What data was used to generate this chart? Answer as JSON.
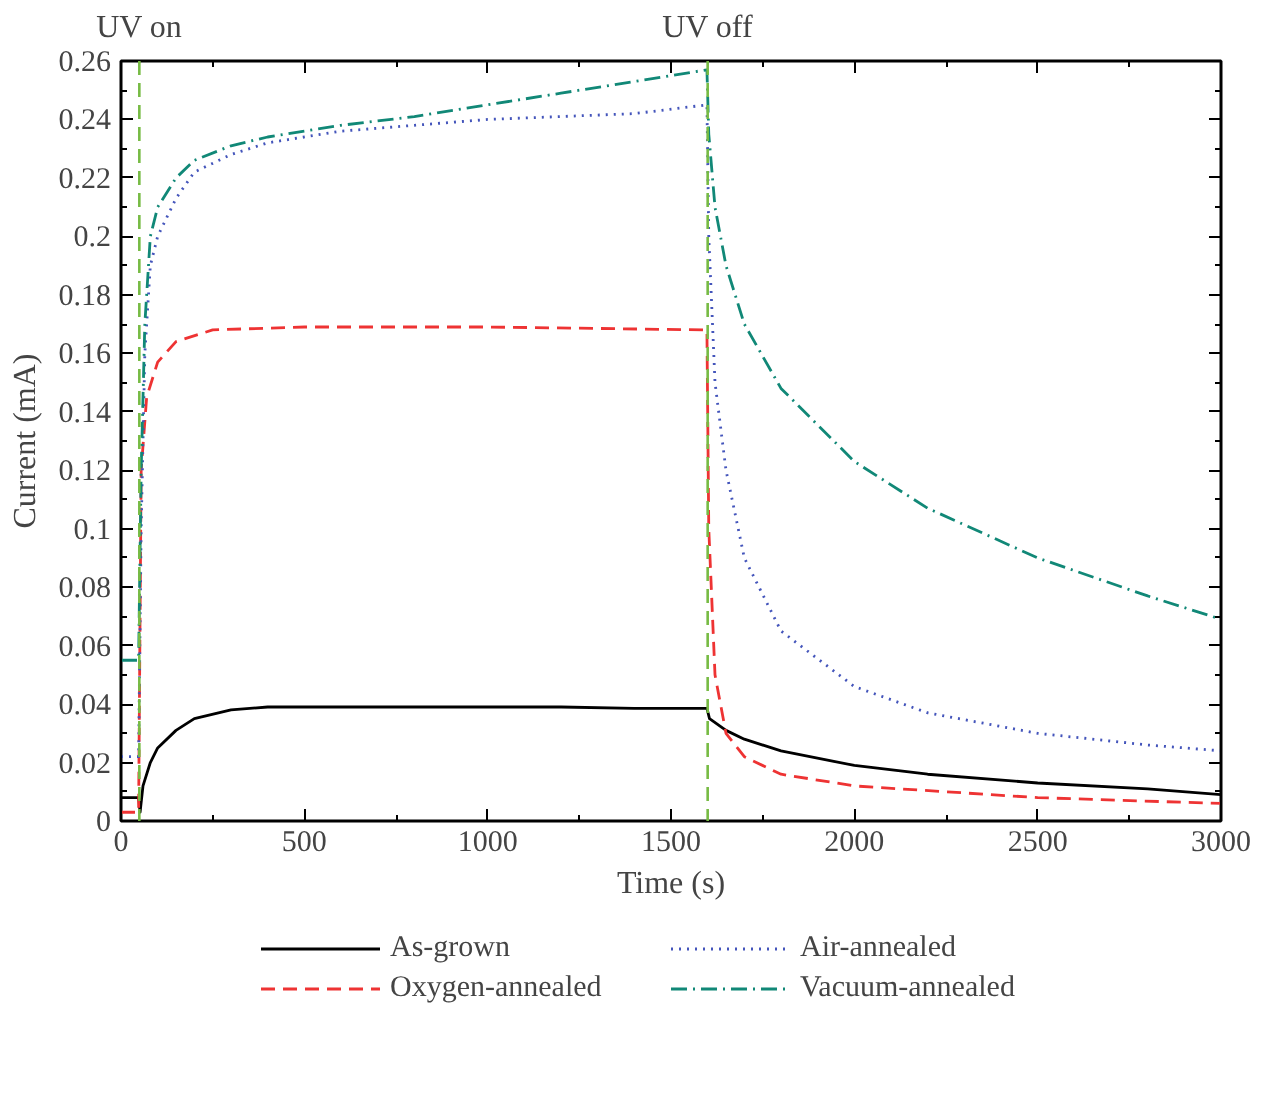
{
  "chart_data": {
    "type": "line",
    "xlabel": "Time (s)",
    "ylabel": "Current (mA)",
    "xlim": [
      0,
      3000
    ],
    "xticks": [
      0,
      500,
      1000,
      1500,
      2000,
      2500,
      3000
    ],
    "ylim": [
      0,
      0.26
    ],
    "yticks": [
      0,
      0.02,
      0.04,
      0.06,
      0.08,
      0.1,
      0.12,
      0.14,
      0.16,
      0.18,
      0.2,
      0.22,
      0.24,
      0.26
    ],
    "grid": false,
    "legend": "bottom",
    "ref_lines": [
      {
        "axis": "x",
        "value": 50,
        "label": "UV on",
        "color": "#77bb44",
        "line_style": "dashed"
      },
      {
        "axis": "x",
        "value": 1600,
        "label": "UV off",
        "color": "#77bb44",
        "line_style": "dashed"
      }
    ],
    "series": [
      {
        "name": "As-grown",
        "color": "#000000",
        "line_style": "solid",
        "x": [
          0,
          48,
          52,
          60,
          80,
          100,
          150,
          200,
          300,
          400,
          600,
          800,
          1000,
          1200,
          1400,
          1598,
          1605,
          1650,
          1700,
          1800,
          2000,
          2200,
          2500,
          2800,
          3000
        ],
        "values": [
          0.008,
          0.008,
          0.003,
          0.012,
          0.02,
          0.025,
          0.031,
          0.035,
          0.038,
          0.039,
          0.039,
          0.039,
          0.039,
          0.039,
          0.0385,
          0.0385,
          0.035,
          0.031,
          0.028,
          0.024,
          0.019,
          0.016,
          0.013,
          0.011,
          0.009
        ]
      },
      {
        "name": "Oxygen-annealed",
        "color": "#ee3333",
        "line_style": "dashed",
        "x": [
          0,
          48,
          55,
          70,
          100,
          150,
          250,
          500,
          800,
          1000,
          1300,
          1598,
          1603,
          1620,
          1650,
          1700,
          1800,
          2000,
          2500,
          3000
        ],
        "values": [
          0.003,
          0.003,
          0.12,
          0.145,
          0.157,
          0.164,
          0.168,
          0.169,
          0.169,
          0.169,
          0.1685,
          0.168,
          0.1,
          0.05,
          0.03,
          0.022,
          0.016,
          0.012,
          0.008,
          0.006
        ]
      },
      {
        "name": "Air-annealed",
        "color": "#4455bb",
        "line_style": "dotted",
        "x": [
          0,
          48,
          55,
          65,
          80,
          100,
          150,
          200,
          300,
          400,
          600,
          800,
          1000,
          1200,
          1400,
          1598,
          1603,
          1620,
          1650,
          1700,
          1800,
          2000,
          2200,
          2500,
          2800,
          3000
        ],
        "values": [
          0.022,
          0.022,
          0.1,
          0.16,
          0.19,
          0.2,
          0.213,
          0.222,
          0.228,
          0.232,
          0.236,
          0.238,
          0.24,
          0.241,
          0.242,
          0.245,
          0.2,
          0.15,
          0.12,
          0.09,
          0.065,
          0.046,
          0.037,
          0.03,
          0.026,
          0.024
        ]
      },
      {
        "name": "Vacuum-annealed",
        "color": "#118877",
        "line_style": "dashdot",
        "x": [
          0,
          48,
          55,
          65,
          80,
          100,
          150,
          200,
          300,
          400,
          600,
          800,
          1000,
          1200,
          1400,
          1598,
          1603,
          1620,
          1650,
          1700,
          1800,
          2000,
          2200,
          2500,
          2800,
          3000
        ],
        "values": [
          0.055,
          0.055,
          0.12,
          0.17,
          0.2,
          0.21,
          0.22,
          0.226,
          0.231,
          0.234,
          0.238,
          0.241,
          0.245,
          0.249,
          0.253,
          0.257,
          0.235,
          0.21,
          0.19,
          0.17,
          0.148,
          0.123,
          0.107,
          0.09,
          0.077,
          0.069
        ]
      }
    ]
  }
}
